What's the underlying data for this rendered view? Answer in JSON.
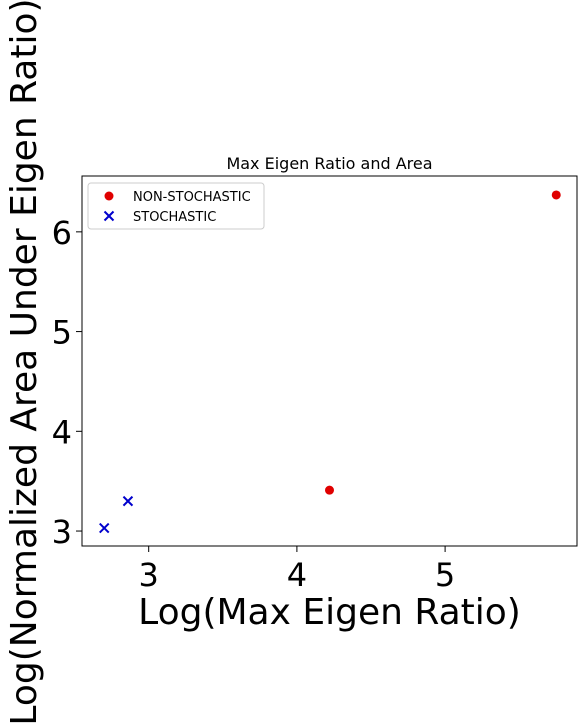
{
  "chart_data": {
    "type": "scatter",
    "title": "Max Eigen Ratio and  Area",
    "xlabel": "Log(Max Eigen Ratio)",
    "ylabel": "Log(Normalized Area Under Eigen Ratio)",
    "xlim": [
      2.55,
      5.89
    ],
    "ylim": [
      2.85,
      6.56
    ],
    "xticks": [
      3,
      4,
      5
    ],
    "yticks": [
      3,
      4,
      5,
      6
    ],
    "grid": false,
    "legend_position": "upper left",
    "series": [
      {
        "name": "NON-STOCHASTIC",
        "marker": "circle",
        "color": "#e00000",
        "points": [
          {
            "x": 4.22,
            "y": 3.41
          },
          {
            "x": 5.75,
            "y": 6.37
          }
        ]
      },
      {
        "name": "STOCHASTIC",
        "marker": "x",
        "color": "#0000cc",
        "points": [
          {
            "x": 2.7,
            "y": 3.03
          },
          {
            "x": 2.86,
            "y": 3.3
          }
        ]
      }
    ]
  }
}
